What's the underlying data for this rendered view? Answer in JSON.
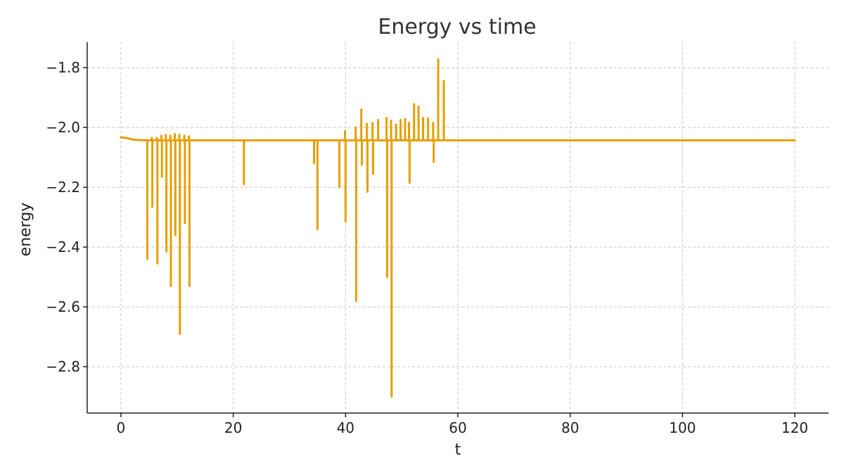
{
  "chart_data": {
    "type": "line",
    "title": "Energy vs time",
    "xlabel": "t",
    "ylabel": "energy",
    "xlim": [
      -6,
      126
    ],
    "ylim": [
      -2.955,
      -1.715
    ],
    "xticks": [
      0,
      20,
      40,
      60,
      80,
      100,
      120
    ],
    "yticks": [
      -1.8,
      -2.0,
      -2.2,
      -2.4,
      -2.6,
      -2.8
    ],
    "xtick_labels": [
      "0",
      "20",
      "40",
      "60",
      "80",
      "100",
      "120"
    ],
    "ytick_labels": [
      "−1.8",
      "−2.0",
      "−2.2",
      "−2.4",
      "−2.6",
      "−2.8"
    ],
    "grid": true,
    "baseline": -2.043,
    "series": [
      {
        "color": "#E69F00",
        "start": [
          [
            0,
            -2.033
          ],
          [
            1,
            -2.035
          ],
          [
            2,
            -2.04
          ],
          [
            3,
            -2.042
          ],
          [
            5,
            -2.043
          ]
        ],
        "end_x": 120,
        "spikes": [
          [
            4.7,
            -2.44
          ],
          [
            5.5,
            -2.035
          ],
          [
            5.6,
            -2.265
          ],
          [
            6.4,
            -2.035
          ],
          [
            6.5,
            -2.455
          ],
          [
            7.2,
            -2.028
          ],
          [
            7.3,
            -2.165
          ],
          [
            8.0,
            -2.025
          ],
          [
            8.1,
            -2.415
          ],
          [
            8.8,
            -2.028
          ],
          [
            8.9,
            -2.53
          ],
          [
            9.6,
            -2.022
          ],
          [
            9.7,
            -2.36
          ],
          [
            10.4,
            -2.025
          ],
          [
            10.5,
            -2.69
          ],
          [
            11.3,
            -2.028
          ],
          [
            11.4,
            -2.32
          ],
          [
            12.1,
            -2.03
          ],
          [
            12.2,
            -2.53
          ],
          [
            21.9,
            -2.19
          ],
          [
            34.4,
            -2.12
          ],
          [
            35.0,
            -2.34
          ],
          [
            38.9,
            -2.2
          ],
          [
            39.9,
            -2.012
          ],
          [
            40.0,
            -2.315
          ],
          [
            41.8,
            -2.0
          ],
          [
            41.9,
            -2.58
          ],
          [
            42.8,
            -1.94
          ],
          [
            42.9,
            -2.125
          ],
          [
            43.8,
            -1.988
          ],
          [
            43.9,
            -2.215
          ],
          [
            44.8,
            -1.985
          ],
          [
            44.9,
            -2.155
          ],
          [
            45.8,
            -1.975
          ],
          [
            47.3,
            -1.968
          ],
          [
            47.4,
            -2.5
          ],
          [
            48.1,
            -1.978
          ],
          [
            48.2,
            -2.9
          ],
          [
            49.0,
            -1.99
          ],
          [
            49.8,
            -1.975
          ],
          [
            50.6,
            -1.972
          ],
          [
            51.3,
            -1.985
          ],
          [
            51.4,
            -2.185
          ],
          [
            52.2,
            -1.922
          ],
          [
            53.0,
            -1.93
          ],
          [
            53.8,
            -1.968
          ],
          [
            54.7,
            -1.97
          ],
          [
            55.6,
            -1.985
          ],
          [
            55.7,
            -2.115
          ],
          [
            56.5,
            -1.772
          ],
          [
            57.5,
            -1.845
          ]
        ]
      }
    ]
  }
}
